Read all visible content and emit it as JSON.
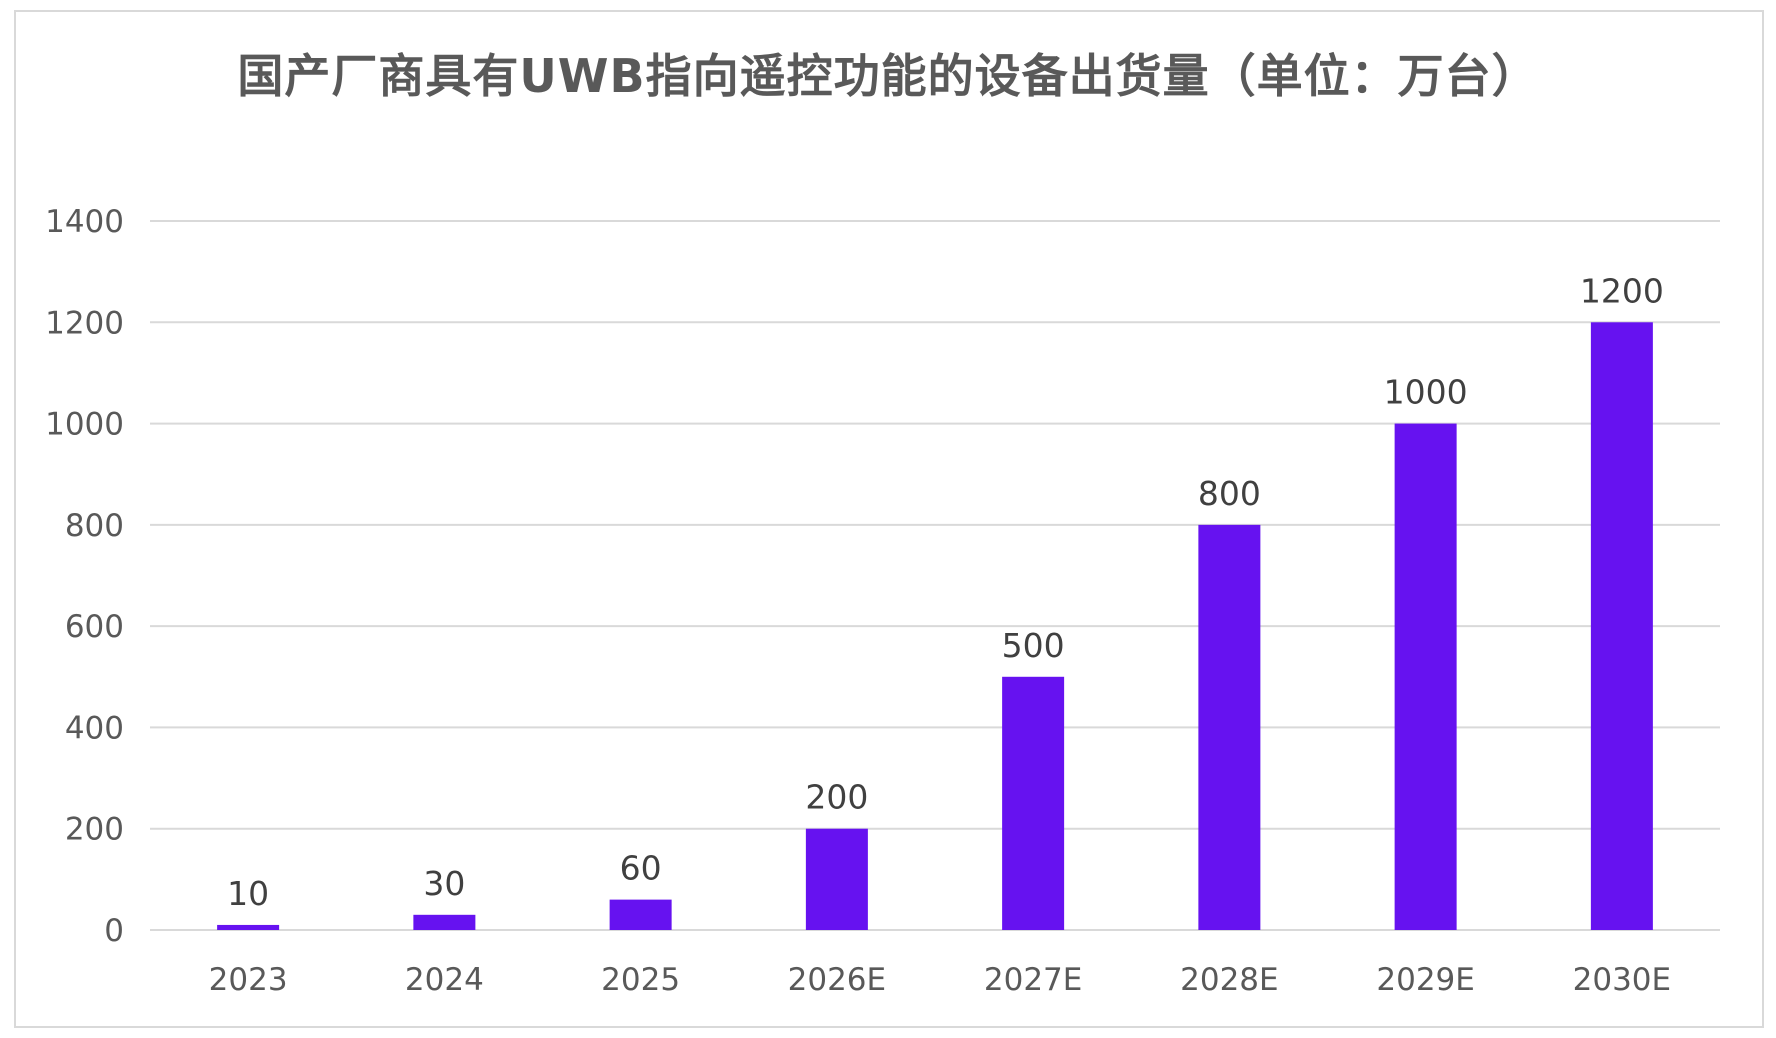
{
  "chart_data": {
    "type": "bar",
    "title": "国产厂商具有UWB指向遥控功能的设备出货量（单位：万台）",
    "categories": [
      "2023",
      "2024",
      "2025",
      "2026E",
      "2027E",
      "2028E",
      "2029E",
      "2030E"
    ],
    "values": [
      10,
      30,
      60,
      200,
      500,
      800,
      1000,
      1200
    ],
    "data_labels": [
      "10",
      "30",
      "60",
      "200",
      "500",
      "800",
      "1000",
      "1200"
    ],
    "xlabel": "",
    "ylabel": "",
    "ylim": [
      0,
      1400
    ],
    "yticks": [
      0,
      200,
      400,
      600,
      800,
      1000,
      1200,
      1400
    ],
    "ytick_labels": [
      "0",
      "200",
      "400",
      "600",
      "800",
      "1000",
      "1200",
      "1400"
    ],
    "grid": true,
    "legend": "none",
    "colors": {
      "bar": "#6612f0",
      "grid": "#d9d9d9",
      "axis_text": "#595959",
      "label_text": "#404040",
      "title_text": "#595959"
    }
  }
}
